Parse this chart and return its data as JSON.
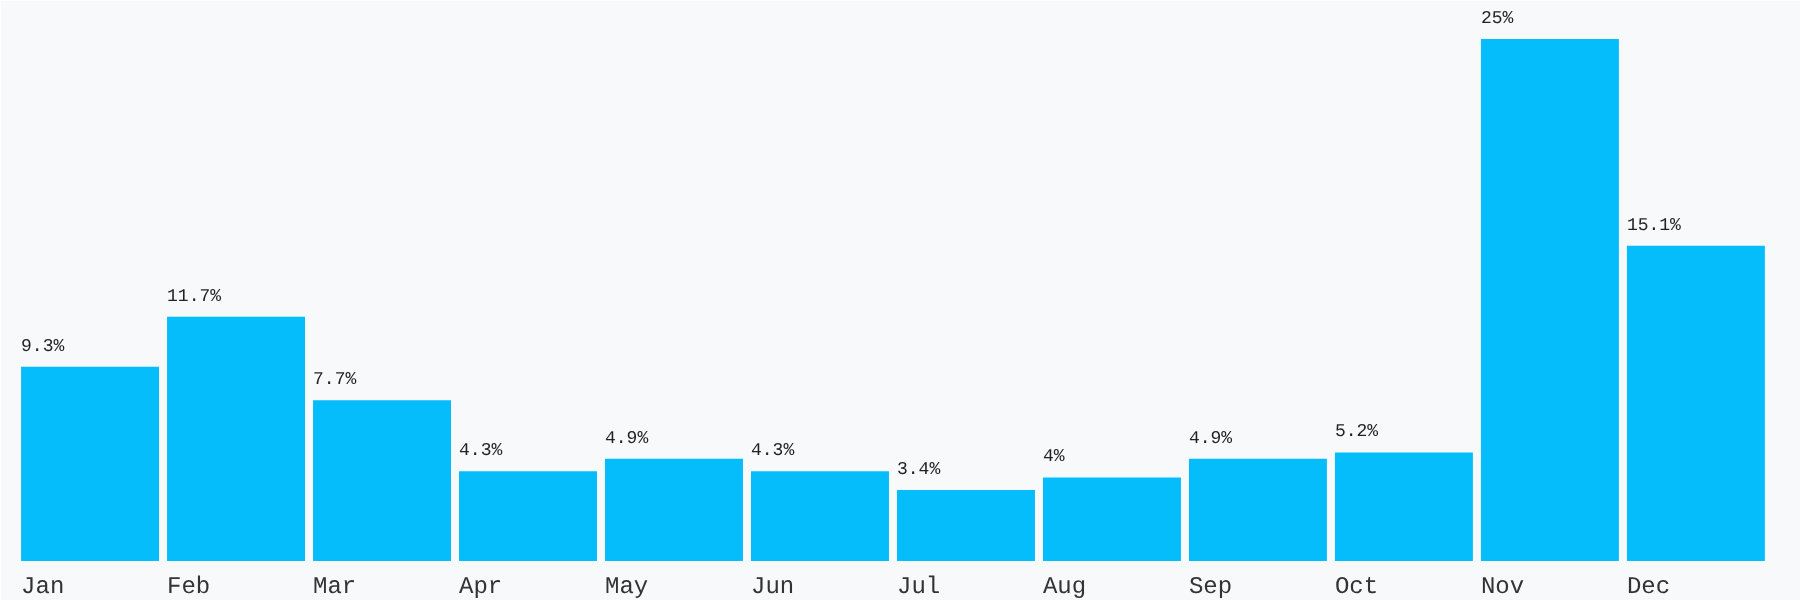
{
  "chart_data": {
    "type": "bar",
    "categories": [
      "Jan",
      "Feb",
      "Mar",
      "Apr",
      "May",
      "Jun",
      "Jul",
      "Aug",
      "Sep",
      "Oct",
      "Nov",
      "Dec"
    ],
    "values": [
      9.3,
      11.7,
      7.7,
      4.3,
      4.9,
      4.3,
      3.4,
      4,
      4.9,
      5.2,
      25,
      15.1
    ],
    "value_labels": [
      "9.3%",
      "11.7%",
      "7.7%",
      "4.3%",
      "4.9%",
      "4.3%",
      "3.4%",
      "4%",
      "4.9%",
      "5.2%",
      "25%",
      "15.1%"
    ],
    "color": "#06bdfb"
  }
}
